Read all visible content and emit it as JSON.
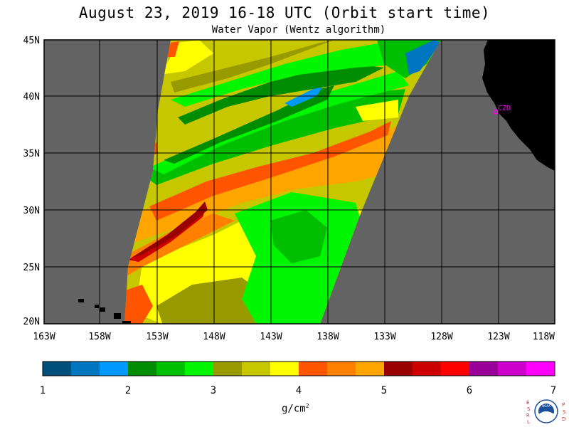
{
  "header": {
    "title": "August 23, 2019  16-18 UTC  (Orbit start time)",
    "subtitle": "Water Vapor (Wentz algorithm)"
  },
  "map": {
    "lat_labels": [
      "45N",
      "40N",
      "35N",
      "30N",
      "25N",
      "20N"
    ],
    "lon_labels": [
      "163W",
      "158W",
      "153W",
      "148W",
      "143W",
      "138W",
      "133W",
      "128W",
      "123W",
      "118W"
    ],
    "station_label": "CZD",
    "colors": {
      "land": "#000000",
      "no_data": "#636363",
      "grid": "#000000",
      "station": "#ff00ff"
    }
  },
  "colorbar": {
    "labels": [
      "1",
      "2",
      "3",
      "4",
      "5",
      "6",
      "7"
    ],
    "units": "g/cm",
    "units_exponent": "2",
    "colors": [
      "#004e7a",
      "#0076c0",
      "#0099ff",
      "#008c00",
      "#00bf00",
      "#00f500",
      "#999900",
      "#c7c700",
      "#ffff00",
      "#ff5500",
      "#ff7f00",
      "#ffa500",
      "#990000",
      "#cc0000",
      "#ff0000",
      "#990099",
      "#cc00cc",
      "#ff00ff"
    ]
  },
  "logo": {
    "left_letters": [
      "E",
      "S",
      "R",
      "L"
    ],
    "right_letters": [
      "P",
      "S",
      "D"
    ],
    "center_text": "NOAA"
  }
}
